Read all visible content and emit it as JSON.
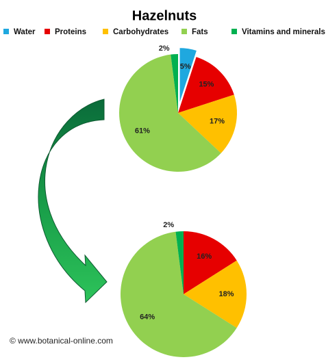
{
  "credit": "© www.botanical-online.com",
  "chart_data": [
    {
      "type": "pie",
      "title": "Hazelnuts",
      "categories": [
        "Water",
        "Proteins",
        "Carbohydrates",
        "Fats",
        "Vitamins and minerals"
      ],
      "values": [
        5,
        15,
        17,
        61,
        2
      ],
      "value_labels": [
        "5%",
        "15%",
        "17%",
        "61%",
        "2%"
      ],
      "colors": [
        "#1fa8df",
        "#e60000",
        "#ffc000",
        "#92d050",
        "#00b050"
      ],
      "exploded": [
        true,
        false,
        false,
        false,
        false
      ]
    },
    {
      "type": "pie",
      "categories": [
        "Proteins",
        "Carbohydrates",
        "Fats",
        "Vitamins and minerals"
      ],
      "values": [
        16,
        18,
        64,
        2
      ],
      "value_labels": [
        "16%",
        "18%",
        "64%",
        "2%"
      ],
      "colors": [
        "#e60000",
        "#ffc000",
        "#92d050",
        "#00b050"
      ],
      "exploded": [
        false,
        false,
        false,
        false
      ]
    }
  ]
}
